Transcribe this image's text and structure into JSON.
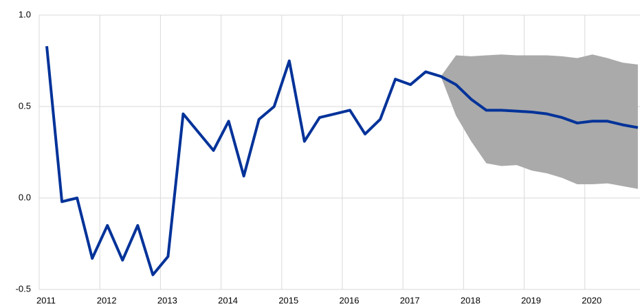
{
  "chart_data": {
    "type": "line",
    "x": [
      2011.125,
      2011.375,
      2011.625,
      2011.875,
      2012.125,
      2012.375,
      2012.625,
      2012.875,
      2013.125,
      2013.375,
      2013.625,
      2013.875,
      2014.125,
      2014.375,
      2014.625,
      2014.875,
      2015.125,
      2015.375,
      2015.625,
      2015.875,
      2016.125,
      2016.375,
      2016.625,
      2016.875,
      2017.125,
      2017.375,
      2017.625,
      2017.875,
      2018.125,
      2018.375,
      2018.625,
      2018.875,
      2019.125,
      2019.375,
      2019.625,
      2019.875,
      2020.125,
      2020.375,
      2020.625,
      2020.875
    ],
    "series": [
      {
        "color": "#003299",
        "values": [
          0.83,
          -0.02,
          0.0,
          -0.33,
          -0.15,
          -0.34,
          -0.15,
          -0.42,
          -0.32,
          0.46,
          0.36,
          0.26,
          0.42,
          0.12,
          0.43,
          0.5,
          0.75,
          0.31,
          0.44,
          0.46,
          0.48,
          0.35,
          0.43,
          0.65,
          0.62,
          0.69,
          0.665,
          0.62,
          0.54,
          0.48,
          0.48,
          0.475,
          0.47,
          0.46,
          0.44,
          0.41,
          0.42,
          0.42,
          0.4,
          0.385
        ]
      }
    ],
    "band": {
      "color": "#aaaaaa",
      "upper": [
        null,
        null,
        null,
        null,
        null,
        null,
        null,
        null,
        null,
        null,
        null,
        null,
        null,
        null,
        null,
        null,
        null,
        null,
        null,
        null,
        null,
        null,
        null,
        null,
        null,
        null,
        0.665,
        0.78,
        0.775,
        0.78,
        0.785,
        0.78,
        0.78,
        0.78,
        0.775,
        0.765,
        0.785,
        0.765,
        0.74,
        0.73
      ],
      "lower": [
        null,
        null,
        null,
        null,
        null,
        null,
        null,
        null,
        null,
        null,
        null,
        null,
        null,
        null,
        null,
        null,
        null,
        null,
        null,
        null,
        null,
        null,
        null,
        null,
        null,
        null,
        0.665,
        0.45,
        0.31,
        0.19,
        0.175,
        0.18,
        0.15,
        0.135,
        0.11,
        0.075,
        0.075,
        0.08,
        0.065,
        0.05
      ]
    },
    "xlim": [
      2011,
      2020.91
    ],
    "xticks": [
      2011,
      2012,
      2013,
      2014,
      2015,
      2016,
      2017,
      2018,
      2019,
      2020
    ],
    "ylim": [
      -0.5,
      1.0
    ],
    "yticks": [
      {
        "value": -0.5,
        "label": "-0.5"
      },
      {
        "value": 0.0,
        "label": "0.0"
      },
      {
        "value": 0.5,
        "label": "0.5"
      },
      {
        "value": 1.0,
        "label": "1.0"
      }
    ],
    "grid": true
  }
}
